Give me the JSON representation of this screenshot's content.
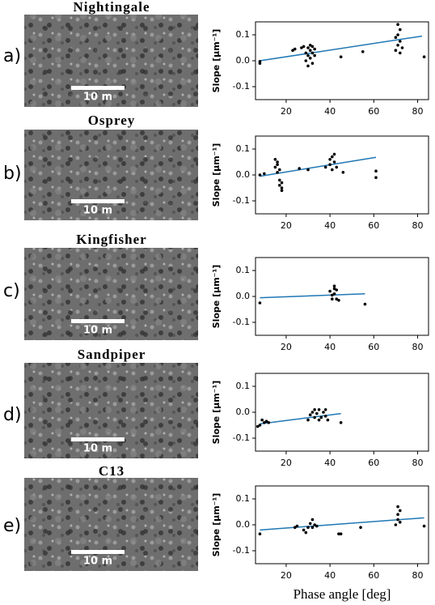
{
  "figure": {
    "panel_labels": [
      "a)",
      "b)",
      "c)",
      "d)",
      "e)"
    ],
    "site_names": [
      "Nightingale",
      "Osprey",
      "Kingfisher",
      "Sandpiper",
      "C13"
    ],
    "scale_bars": [
      "10 m",
      "10 m",
      "10 m",
      "10 m",
      "10 m"
    ]
  },
  "chart_data": [
    {
      "type": "scatter",
      "y_label": "Slope [μm⁻¹]",
      "xlim": [
        6,
        85
      ],
      "ylim": [
        -0.15,
        0.15
      ],
      "xticks": [
        20,
        40,
        60,
        80
      ],
      "yticks": [
        -0.1,
        {
          "value": 0,
          "label": "0.0"
        },
        0.1
      ],
      "point_color": "#000000",
      "fit_color": "#1f77b4",
      "points": {
        "x": [
          8,
          8,
          23,
          24,
          27,
          28,
          29,
          29,
          30,
          30,
          30,
          31,
          31,
          31,
          32,
          32,
          32,
          33,
          33,
          45,
          55,
          70,
          70,
          71,
          71,
          71,
          72,
          72,
          72,
          73,
          83
        ],
        "y": [
          -0.01,
          -0.003,
          0.04,
          0.045,
          0.05,
          0.055,
          0.0,
          0.03,
          0.02,
          -0.02,
          0.05,
          0.01,
          0.04,
          0.06,
          0.03,
          -0.01,
          0.055,
          0.02,
          0.045,
          0.015,
          0.035,
          0.04,
          0.09,
          0.06,
          0.14,
          0.1,
          0.03,
          0.075,
          0.12,
          0.05,
          0.015
        ]
      },
      "fit": {
        "x": [
          8,
          82
        ],
        "y": [
          0.0,
          0.095
        ]
      }
    },
    {
      "type": "scatter",
      "y_label": "Slope [μm⁻¹]",
      "xlim": [
        6,
        85
      ],
      "ylim": [
        -0.15,
        0.15
      ],
      "xticks": [
        20,
        40,
        60,
        80
      ],
      "yticks": [
        -0.1,
        {
          "value": 0,
          "label": "0.0"
        },
        0.1
      ],
      "point_color": "#000000",
      "fit_color": "#1f77b4",
      "points": {
        "x": [
          8,
          10,
          15,
          15,
          16,
          16,
          16,
          17,
          17,
          17,
          18,
          18,
          18,
          26,
          30,
          38,
          40,
          40,
          41,
          41,
          42,
          42,
          43,
          46,
          61,
          61
        ],
        "y": [
          0,
          0.005,
          0.06,
          0.03,
          0.05,
          0.01,
          0.04,
          -0.02,
          -0.04,
          0.02,
          -0.05,
          -0.03,
          -0.06,
          0.025,
          0.02,
          0.03,
          0.06,
          0.04,
          0.07,
          0.02,
          0.05,
          0.08,
          0.03,
          0.01,
          0.015,
          -0.01
        ]
      },
      "fit": {
        "x": [
          8,
          61
        ],
        "y": [
          -0.005,
          0.068
        ]
      }
    },
    {
      "type": "scatter",
      "y_label": "Slope [μm⁻¹]",
      "xlim": [
        6,
        85
      ],
      "ylim": [
        -0.15,
        0.15
      ],
      "xticks": [
        20,
        40,
        60,
        80
      ],
      "yticks": [
        -0.1,
        {
          "value": 0,
          "label": "0.0"
        },
        0.1
      ],
      "point_color": "#000000",
      "fit_color": "#1f77b4",
      "points": {
        "x": [
          8,
          40,
          41,
          41,
          42,
          42,
          42,
          43,
          43,
          44,
          56
        ],
        "y": [
          -0.025,
          0.02,
          0.005,
          -0.01,
          0.04,
          0.03,
          0.01,
          0.025,
          -0.01,
          -0.015,
          -0.03
        ]
      },
      "fit": {
        "x": [
          8,
          56
        ],
        "y": [
          -0.005,
          0.01
        ]
      }
    },
    {
      "type": "scatter",
      "y_label": "Slope [μm⁻¹]",
      "xlim": [
        6,
        85
      ],
      "ylim": [
        -0.15,
        0.15
      ],
      "xticks": [
        20,
        40,
        60,
        80
      ],
      "yticks": [
        -0.1,
        {
          "value": 0,
          "label": "0.0"
        },
        0.1
      ],
      "point_color": "#000000",
      "fit_color": "#1f77b4",
      "points": {
        "x": [
          7,
          8,
          9,
          10,
          11,
          12,
          30,
          31,
          32,
          33,
          33,
          34,
          35,
          35,
          36,
          37,
          38,
          38,
          39,
          45
        ],
        "y": [
          -0.055,
          -0.05,
          -0.03,
          -0.04,
          -0.035,
          -0.04,
          -0.03,
          -0.01,
          0.0,
          -0.02,
          0.01,
          -0.005,
          -0.03,
          0.01,
          -0.02,
          0.0,
          -0.015,
          0.01,
          -0.03,
          -0.04
        ]
      },
      "fit": {
        "x": [
          8,
          45
        ],
        "y": [
          -0.045,
          -0.005
        ]
      }
    },
    {
      "type": "scatter",
      "y_label": "Slope [μm⁻¹]",
      "x_label": "Phase angle [deg]",
      "xlim": [
        6,
        85
      ],
      "ylim": [
        -0.15,
        0.15
      ],
      "xticks": [
        20,
        40,
        60,
        80
      ],
      "yticks": [
        -0.1,
        {
          "value": 0,
          "label": "0.0"
        },
        0.1
      ],
      "point_color": "#000000",
      "fit_color": "#1f77b4",
      "points": {
        "x": [
          8,
          24,
          25,
          28,
          29,
          30,
          31,
          32,
          32,
          33,
          34,
          44,
          45,
          54,
          70,
          71,
          71,
          71,
          72,
          72,
          83
        ],
        "y": [
          -0.035,
          -0.01,
          -0.005,
          -0.02,
          -0.03,
          -0.01,
          0.005,
          0.02,
          -0.01,
          0.0,
          -0.005,
          -0.035,
          -0.035,
          -0.01,
          0.0,
          0.07,
          0.04,
          0.02,
          0.055,
          0.01,
          -0.005
        ]
      },
      "fit": {
        "x": [
          8,
          83
        ],
        "y": [
          -0.02,
          0.027
        ]
      }
    }
  ]
}
